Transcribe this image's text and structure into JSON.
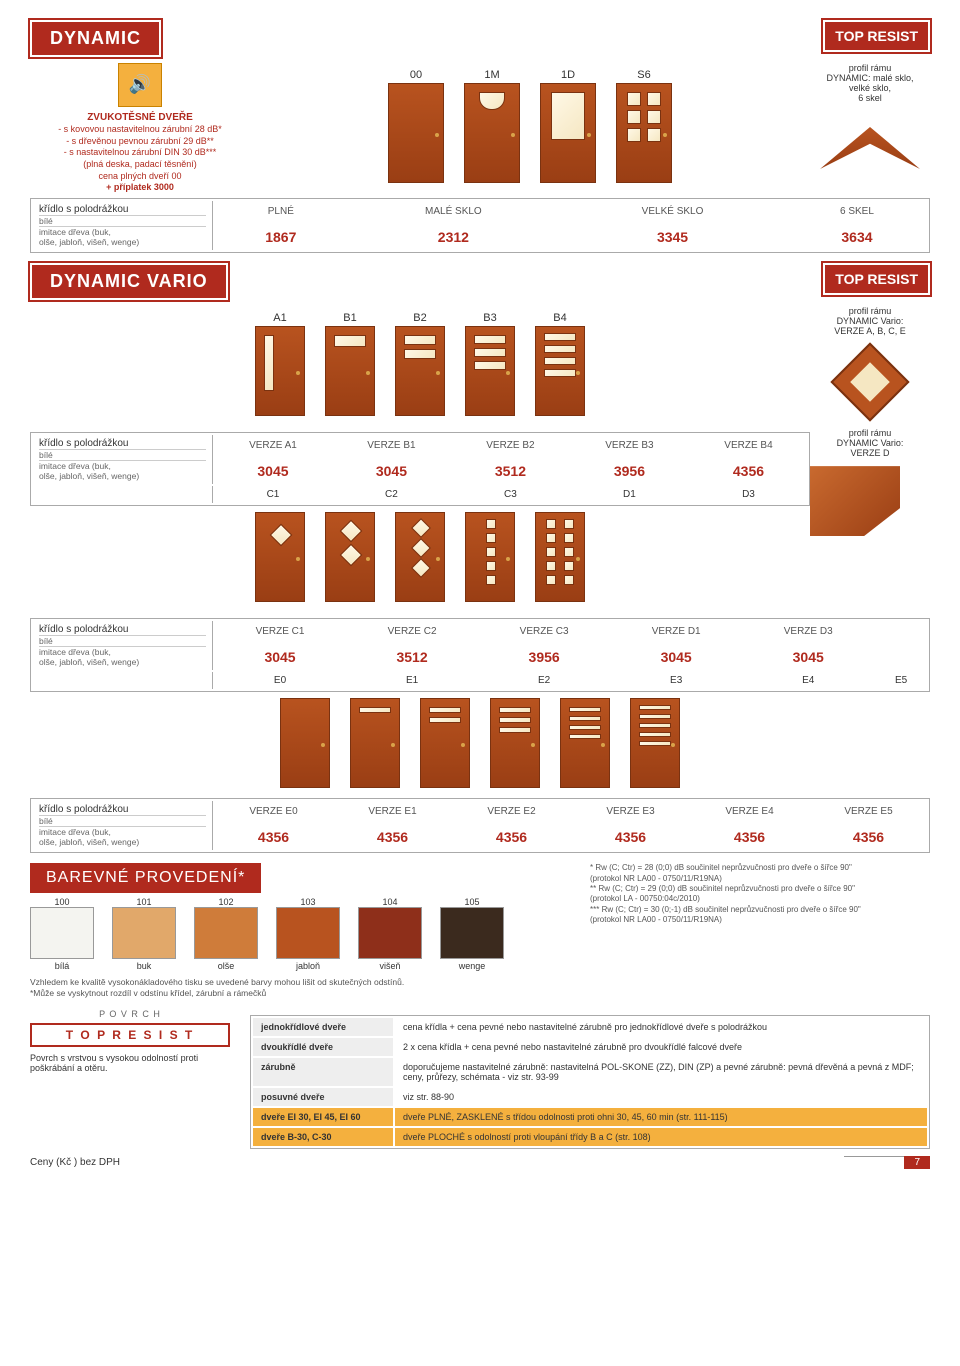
{
  "header": {
    "title": "DYNAMIC",
    "resist": "TOP RESIST"
  },
  "top_doors": {
    "labels": [
      "00",
      "1M",
      "1D",
      "S6"
    ]
  },
  "desc": {
    "title": "ZVUKOTĚSNÉ DVEŘE",
    "l1": "- s kovovou nastavitelnou zárubní 28 dB*",
    "l2": "- s dřevěnou pevnou zárubní 29 dB**",
    "l3": "- s nastavitelnou zárubní DIN 30 dB***",
    "l4": "(plná deska, padací těsnění)",
    "l5": "cena plných dveří 00",
    "l6": "+ příplatek 3000"
  },
  "frame1": {
    "t1": "profil rámu",
    "t2": "DYNAMIC: malé sklo,",
    "t3": "velké sklo,",
    "t4": "6 skel"
  },
  "tbl1": {
    "row_label": "křídlo s polodrážkou",
    "sub1": "bílé",
    "sub2": "imitace dřeva (buk,",
    "sub3": "olše, jabloň, višeň, wenge)",
    "headers": [
      "PLNÉ",
      "MALÉ SKLO",
      "VELKÉ SKLO",
      "6 SKEL"
    ],
    "prices": [
      "1867",
      "2312",
      "3345",
      "3634"
    ]
  },
  "vario": {
    "title": "DYNAMIC VARIO",
    "resist": "TOP RESIST",
    "labels_ab": [
      "A1",
      "B1",
      "B2",
      "B3",
      "B4"
    ]
  },
  "frame2": {
    "t1": "profil rámu",
    "t2": "DYNAMIC Vario:",
    "t3": "VERZE A, B, C, E"
  },
  "frame3": {
    "t1": "profil rámu",
    "t2": "DYNAMIC Vario:",
    "t3": "VERZE D"
  },
  "tbl2": {
    "headers": [
      "VERZE A1",
      "VERZE B1",
      "VERZE B2",
      "VERZE B3",
      "VERZE B4"
    ],
    "prices": [
      "3045",
      "3045",
      "3512",
      "3956",
      "4356"
    ],
    "labels_cd": [
      "C1",
      "C2",
      "C3",
      "D1",
      "D3"
    ]
  },
  "tbl3": {
    "headers": [
      "VERZE C1",
      "VERZE C2",
      "VERZE C3",
      "VERZE D1",
      "VERZE D3"
    ],
    "prices": [
      "3045",
      "3512",
      "3956",
      "3045",
      "3045"
    ],
    "labels_e": [
      "E0",
      "E1",
      "E2",
      "E3",
      "E4",
      "E5"
    ]
  },
  "tbl4": {
    "headers": [
      "VERZE E0",
      "VERZE E1",
      "VERZE E2",
      "VERZE E3",
      "VERZE E4",
      "VERZE E5"
    ],
    "prices": [
      "4356",
      "4356",
      "4356",
      "4356",
      "4356",
      "4356"
    ]
  },
  "colors": {
    "title": "BAREVNÉ PROVEDENÍ*",
    "nums": [
      "100",
      "101",
      "102",
      "103",
      "104",
      "105"
    ],
    "names": [
      "bílá",
      "buk",
      "olše",
      "jabloň",
      "višeň",
      "wenge"
    ],
    "hex": [
      "#f4f4f0",
      "#e1a86a",
      "#cf7c3a",
      "#b8531f",
      "#8e2f1a",
      "#3b2a1e"
    ]
  },
  "starnotes": {
    "n1": "* Rw (C; Ctr) = 28 (0;0) dB součinitel neprůzvučnosti pro dveře o šířce 90\"",
    "n1b": "(protokol NR LA00 - 0750/11/R19NA)",
    "n2": "** Rw (C; Ctr) = 29 (0;0) dB součinitel neprůzvučnosti pro dveře o šířce 90\"",
    "n2b": "(protokol LA - 00750:04c/2010)",
    "n3": "*** Rw (C; Ctr) = 30 (0;-1) dB součinitel neprůzvučnosti pro dveře o šířce 90\"",
    "n3b": "(protokol NR LA00 - 0750/11/R19NA)"
  },
  "notes": {
    "n1": "Vzhledem ke kvalitě vysokonákladového tisku se uvedené barvy mohou lišit od skutečných odstínů.",
    "n2": "*Může se vyskytnout rozdíl v odstínu křídel, zárubní a rámečků"
  },
  "surface": {
    "lbl": "P O V R C H",
    "name": "T O P   R E S I S T",
    "desc": "Povrch s vrstvou s vysokou odolností proti poškrábání a otěru."
  },
  "ftbl": {
    "r1l": "jednokřídlové dveře",
    "r1v": "cena křídla + cena pevné nebo nastavitelné zárubně pro jednokřídlové dveře s polodrážkou",
    "r2l": "dvoukřídlé dveře",
    "r2v": "2 x cena křídla + cena pevné nebo nastavitelné zárubně pro dvoukřídlé falcové dveře",
    "r3l": "zárubně",
    "r3v": "doporučujeme nastavitelné zárubně: nastavitelná POL-SKONE (ZZ), DIN (ZP) a pevné zárubně: pevná dřevěná a pevná z MDF; ceny, průřezy, schémata - viz str. 93-99",
    "r4l": "posuvné dveře",
    "r4v": "viz str. 88-90",
    "r5l": "dveře EI 30, EI 45, EI 60",
    "r5v": "dveře PLNÉ, ZASKLENÉ s třídou odolnosti proti ohni 30, 45, 60 min (str. 111-115)",
    "r6l": "dveře B-30, C-30",
    "r6v": "dveře PLOCHÉ s odolností proti vloupání třídy B a C (str. 108)"
  },
  "foot": {
    "l": "Ceny (Kč ) bez DPH",
    "pg": "7"
  }
}
